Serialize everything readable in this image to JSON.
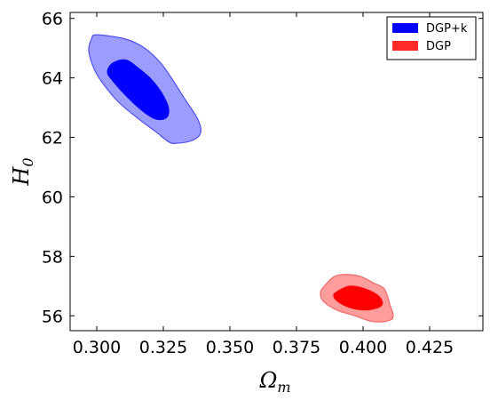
{
  "chart_data": {
    "type": "contour",
    "xlabel": "Ω",
    "xlabel_sub": "m",
    "ylabel": "H",
    "ylabel_sub": "0",
    "xlim": [
      0.29,
      0.445
    ],
    "ylim": [
      55.5,
      66.2
    ],
    "x_ticks": [
      0.3,
      0.325,
      0.35,
      0.375,
      0.4,
      0.425
    ],
    "x_tick_labels": [
      "0.300",
      "0.325",
      "0.350",
      "0.375",
      "0.400",
      "0.425"
    ],
    "y_ticks": [
      56,
      58,
      60,
      62,
      64,
      66
    ],
    "y_tick_labels": [
      "56",
      "58",
      "60",
      "62",
      "64",
      "66"
    ],
    "legend_position": "top-right",
    "series": [
      {
        "name": "DGP+k",
        "color": "#0000ff",
        "outer_color": "#9c9cff",
        "edge_color": "#5050f0",
        "contour_outer": [
          [
            0.3,
            65.45
          ],
          [
            0.311,
            65.3
          ],
          [
            0.318,
            65.0
          ],
          [
            0.324,
            64.5
          ],
          [
            0.328,
            64.0
          ],
          [
            0.333,
            63.3
          ],
          [
            0.338,
            62.6
          ],
          [
            0.339,
            62.15
          ],
          [
            0.336,
            61.9
          ],
          [
            0.33,
            61.8
          ],
          [
            0.327,
            61.85
          ],
          [
            0.322,
            62.2
          ],
          [
            0.316,
            62.6
          ],
          [
            0.308,
            63.2
          ],
          [
            0.302,
            63.85
          ],
          [
            0.299,
            64.3
          ],
          [
            0.297,
            64.9
          ],
          [
            0.298,
            65.3
          ]
        ],
        "contour_inner": [
          [
            0.306,
            64.5
          ],
          [
            0.311,
            64.6
          ],
          [
            0.316,
            64.3
          ],
          [
            0.321,
            63.9
          ],
          [
            0.325,
            63.4
          ],
          [
            0.327,
            62.95
          ],
          [
            0.326,
            62.65
          ],
          [
            0.322,
            62.62
          ],
          [
            0.317,
            62.9
          ],
          [
            0.311,
            63.4
          ],
          [
            0.306,
            63.9
          ],
          [
            0.304,
            64.2
          ]
        ]
      },
      {
        "name": "DGP",
        "color": "#ff0000",
        "outer_color": "#ff9c9c",
        "edge_color": "#f06a6a",
        "contour_outer": [
          [
            0.385,
            56.95
          ],
          [
            0.39,
            57.35
          ],
          [
            0.398,
            57.35
          ],
          [
            0.404,
            57.1
          ],
          [
            0.408,
            56.9
          ],
          [
            0.41,
            56.4
          ],
          [
            0.411,
            55.9
          ],
          [
            0.404,
            55.8
          ],
          [
            0.397,
            56.0
          ],
          [
            0.39,
            56.2
          ],
          [
            0.385,
            56.5
          ],
          [
            0.384,
            56.75
          ]
        ],
        "contour_inner": [
          [
            0.39,
            56.8
          ],
          [
            0.395,
            57.0
          ],
          [
            0.401,
            56.9
          ],
          [
            0.406,
            56.65
          ],
          [
            0.407,
            56.35
          ],
          [
            0.402,
            56.2
          ],
          [
            0.396,
            56.25
          ],
          [
            0.391,
            56.45
          ],
          [
            0.389,
            56.65
          ]
        ]
      }
    ]
  }
}
